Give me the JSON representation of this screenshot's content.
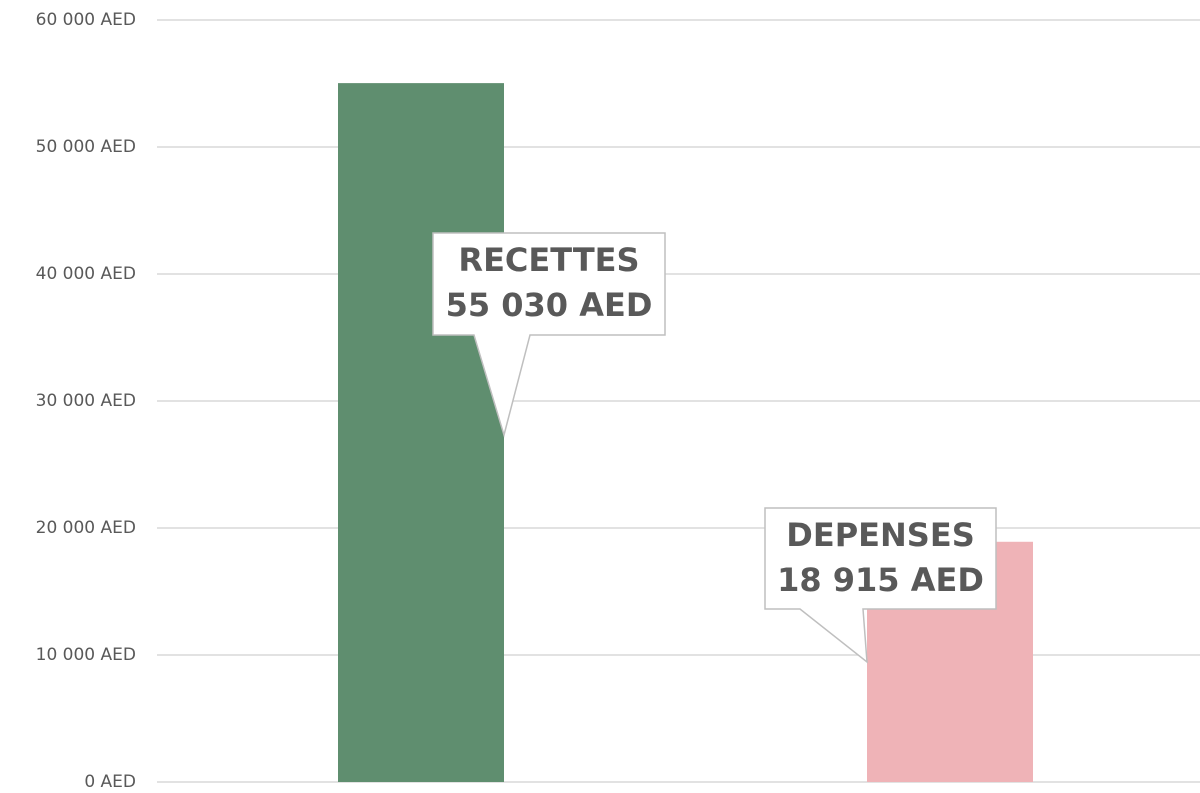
{
  "chart_data": {
    "type": "bar",
    "categories": [
      "RECETTES",
      "DEPENSES"
    ],
    "values": [
      55030,
      18915
    ],
    "value_labels": [
      "55 030 AED",
      "18 915 AED"
    ],
    "colors": [
      "#5f8e6f",
      "#efb3b7"
    ],
    "ylim": [
      0,
      60000
    ],
    "yticks": [
      {
        "value": 0,
        "label": "0 AED"
      },
      {
        "value": 10000,
        "label": "10 000 AED"
      },
      {
        "value": 20000,
        "label": "20 000 AED"
      },
      {
        "value": 30000,
        "label": "30 000 AED"
      },
      {
        "value": 40000,
        "label": "40 000 AED"
      },
      {
        "value": 50000,
        "label": "50 000 AED"
      },
      {
        "value": 60000,
        "label": "60 000 AED"
      }
    ],
    "grid": true
  }
}
